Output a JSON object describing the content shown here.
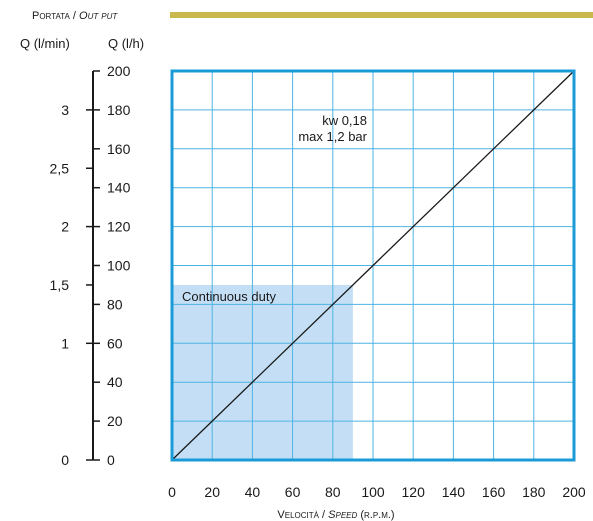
{
  "header": {
    "portata": "Portata",
    "output": "Out put"
  },
  "left_axes": {
    "lmin_label": "Q (l/min)",
    "lh_label": "Q (l/h)"
  },
  "annotations": {
    "power": "kw 0,18",
    "pressure": "max 1,2 bar",
    "duty": "Continuous duty"
  },
  "x_axis_title": {
    "velocita": "Velocità",
    "speed": "Speed",
    "unit": "(r.p.m.)"
  },
  "colors": {
    "frame": "#1a9bd7",
    "grid": "#4fb3e3",
    "duty_fill": "#c4dff5",
    "header_bar": "#c9b84c",
    "line": "#1a1a1a"
  },
  "chart_data": {
    "type": "line",
    "series": [
      {
        "x": [
          0,
          200
        ],
        "values": [
          0,
          200
        ]
      }
    ],
    "xlim": [
      0,
      200
    ],
    "ylim": [
      0,
      200
    ],
    "x_ticks": [
      "0",
      "20",
      "40",
      "60",
      "80",
      "100",
      "120",
      "140",
      "160",
      "180",
      "200"
    ],
    "y_ticks_lh": [
      "0",
      "20",
      "40",
      "60",
      "80",
      "100",
      "120",
      "140",
      "160",
      "180",
      "200"
    ],
    "y_ticks_lmin": [
      {
        "label": "0",
        "value": 0
      },
      {
        "label": "1",
        "value": 1
      },
      {
        "label": "1,5",
        "value": 1.5
      },
      {
        "label": "2",
        "value": 2
      },
      {
        "label": "2,5",
        "value": 2.5
      },
      {
        "label": "3",
        "value": 3
      }
    ],
    "continuous_duty_region": {
      "x": [
        0,
        90
      ],
      "y": [
        0,
        90
      ]
    },
    "grid": true
  }
}
